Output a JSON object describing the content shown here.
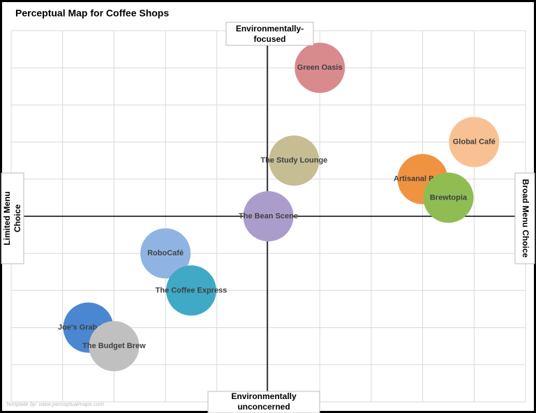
{
  "chart_data": {
    "type": "scatter",
    "title": "Perceptual Map for Coffee Shops",
    "axis_labels": {
      "top": "Environmentally-focused",
      "bottom": "Environmentally unconcerned",
      "left": "Limited Menu Choice",
      "right": "Broad Menu Choice"
    },
    "credit": "Template by: www.perceptualmaps.com",
    "xlim": [
      -5,
      5
    ],
    "ylim": [
      -5,
      5
    ],
    "xticks": [
      -5,
      -4,
      -3,
      -2,
      -1,
      0,
      1,
      2,
      3,
      4,
      5
    ],
    "yticks": [
      -5,
      -4,
      -3,
      -2,
      -1,
      0,
      1,
      2,
      3,
      4,
      5
    ],
    "grid": true,
    "points": [
      {
        "name": "Green Oasis",
        "color": "#d98a8d",
        "x": 1,
        "y": 4
      },
      {
        "name": "Global Café",
        "color": "#f9c193",
        "x": 4,
        "y": 2
      },
      {
        "name": "The Study Lounge",
        "color": "#c6bd93",
        "x": 0.5,
        "y": 1.5
      },
      {
        "name": "Artisanal Brews",
        "color": "#f09340",
        "x": 3,
        "y": 1
      },
      {
        "name": "Brewtopia",
        "color": "#8fbd52",
        "x": 3.5,
        "y": 0.5
      },
      {
        "name": "The Bean Scene",
        "color": "#ab9dcb",
        "x": 0,
        "y": 0
      },
      {
        "name": "RoboCafé",
        "color": "#8fb4e3",
        "x": -2,
        "y": -1
      },
      {
        "name": "The Coffee Express",
        "color": "#3fa9c6",
        "x": -1.5,
        "y": -2
      },
      {
        "name": "Joe's Grab 'n Go",
        "color": "#4b87d1",
        "x": -3.5,
        "y": -3
      },
      {
        "name": "The Budget Brew",
        "color": "#c0c0c0",
        "x": -3,
        "y": -3.5
      }
    ]
  }
}
